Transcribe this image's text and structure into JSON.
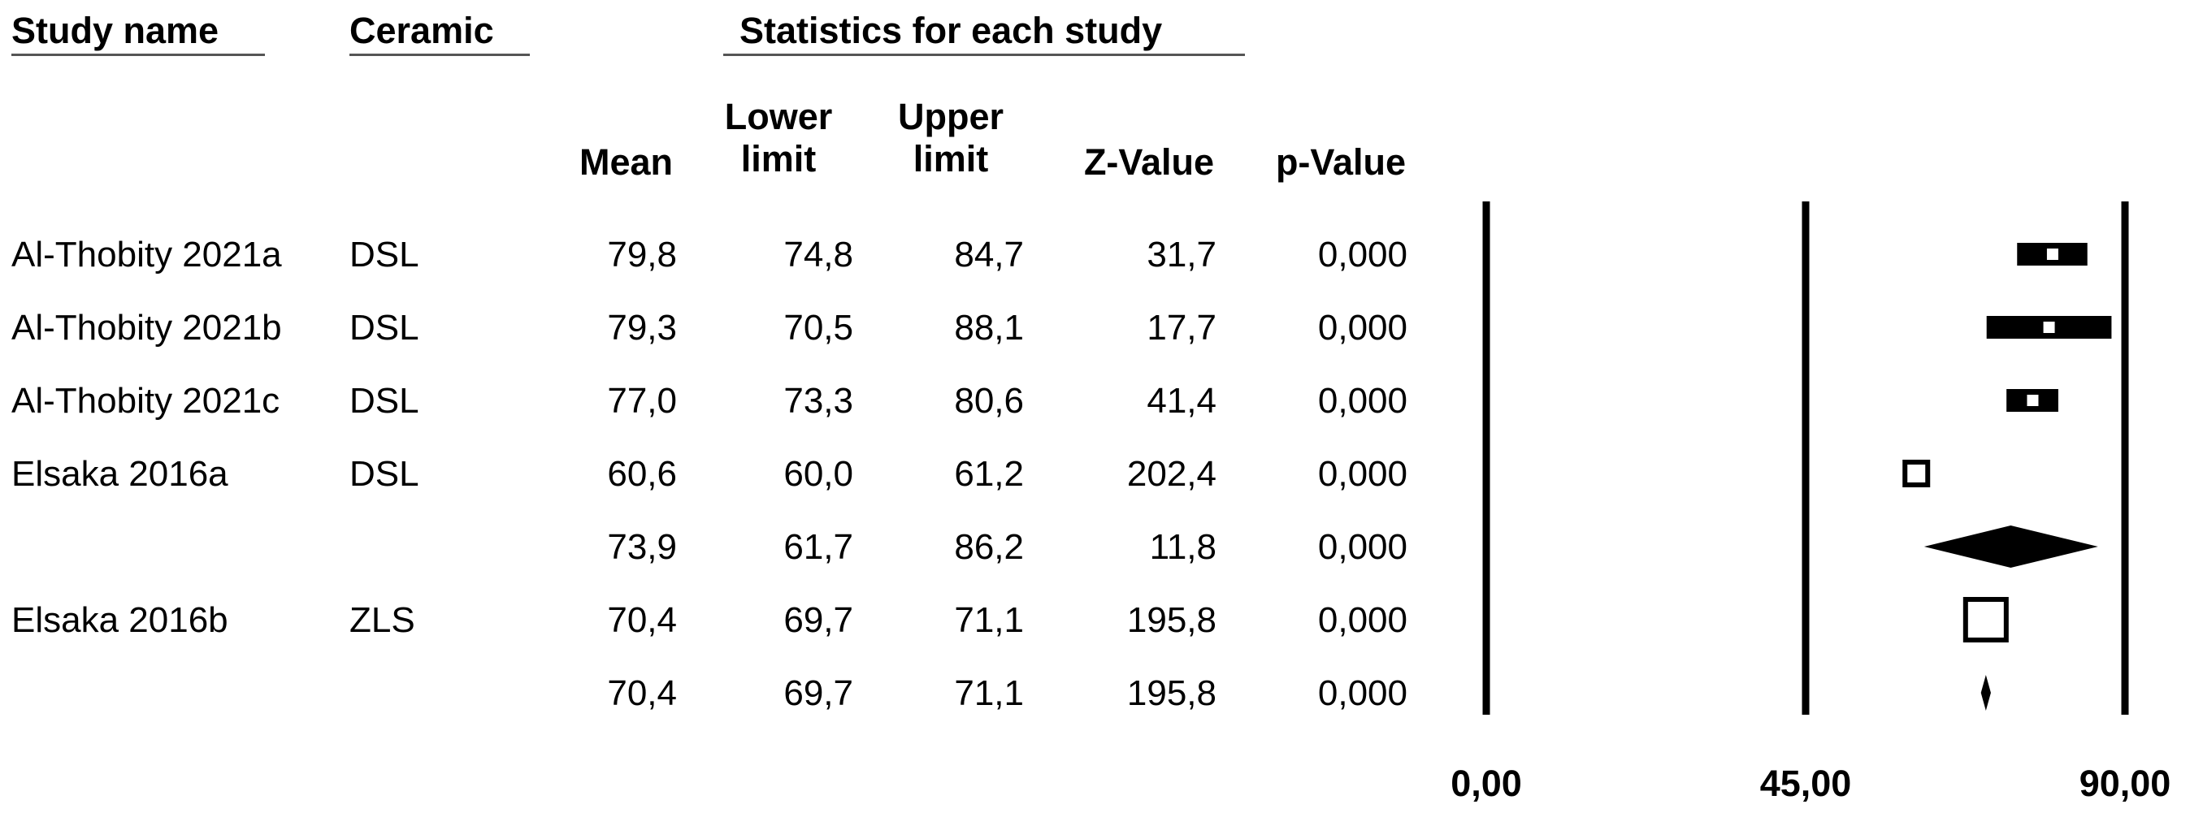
{
  "chart_data": {
    "type": "forest",
    "headers": {
      "study_name": "Study name",
      "ceramic": "Ceramic",
      "group_stats": "Statistics for each study",
      "mean": "Mean",
      "lower": [
        "Lower",
        "limit"
      ],
      "upper": [
        "Upper",
        "limit"
      ],
      "z": "Z-Value",
      "p": "p-Value"
    },
    "rows": [
      {
        "study": "Al-Thobity 2021a",
        "ceramic": "DSL",
        "mean": "79,8",
        "lower": "74,8",
        "upper": "84,7",
        "z": "31,7",
        "p": "0,000",
        "marker": "box",
        "box_size": 1,
        "mean_v": 79.8,
        "lower_v": 74.8,
        "upper_v": 84.7
      },
      {
        "study": "Al-Thobity 2021b",
        "ceramic": "DSL",
        "mean": "79,3",
        "lower": "70,5",
        "upper": "88,1",
        "z": "17,7",
        "p": "0,000",
        "marker": "box",
        "box_size": 1,
        "mean_v": 79.3,
        "lower_v": 70.5,
        "upper_v": 88.1
      },
      {
        "study": "Al-Thobity 2021c",
        "ceramic": "DSL",
        "mean": "77,0",
        "lower": "73,3",
        "upper": "80,6",
        "z": "41,4",
        "p": "0,000",
        "marker": "box",
        "box_size": 1,
        "mean_v": 77.0,
        "lower_v": 73.3,
        "upper_v": 80.6
      },
      {
        "study": "Elsaka 2016a",
        "ceramic": "DSL",
        "mean": "60,6",
        "lower": "60,0",
        "upper": "61,2",
        "z": "202,4",
        "p": "0,000",
        "marker": "box",
        "box_size": 1.4,
        "mean_v": 60.6,
        "lower_v": 60.0,
        "upper_v": 61.2
      },
      {
        "study": "",
        "ceramic": "",
        "mean": "73,9",
        "lower": "61,7",
        "upper": "86,2",
        "z": "11,8",
        "p": "0,000",
        "marker": "diamond",
        "mean_v": 73.9,
        "lower_v": 61.7,
        "upper_v": 86.2
      },
      {
        "study": "Elsaka 2016b",
        "ceramic": "ZLS",
        "mean": "70,4",
        "lower": "69,7",
        "upper": "71,1",
        "z": "195,8",
        "p": "0,000",
        "marker": "box",
        "box_size": 2.5,
        "mean_v": 70.4,
        "lower_v": 69.7,
        "upper_v": 71.1
      },
      {
        "study": "",
        "ceramic": "",
        "mean": "70,4",
        "lower": "69,7",
        "upper": "71,1",
        "z": "195,8",
        "p": "0,000",
        "marker": "diamond",
        "mean_v": 70.4,
        "lower_v": 69.7,
        "upper_v": 71.1
      }
    ],
    "x_axis": {
      "range": [
        0,
        90
      ],
      "ticks": [
        0,
        45,
        90
      ],
      "tick_labels": [
        "0,00",
        "45,00",
        "90,00"
      ]
    },
    "reference_lines": [
      0,
      45,
      90
    ],
    "colors": {
      "ink": "#000000",
      "rule": "#555555",
      "background": "#ffffff"
    }
  }
}
